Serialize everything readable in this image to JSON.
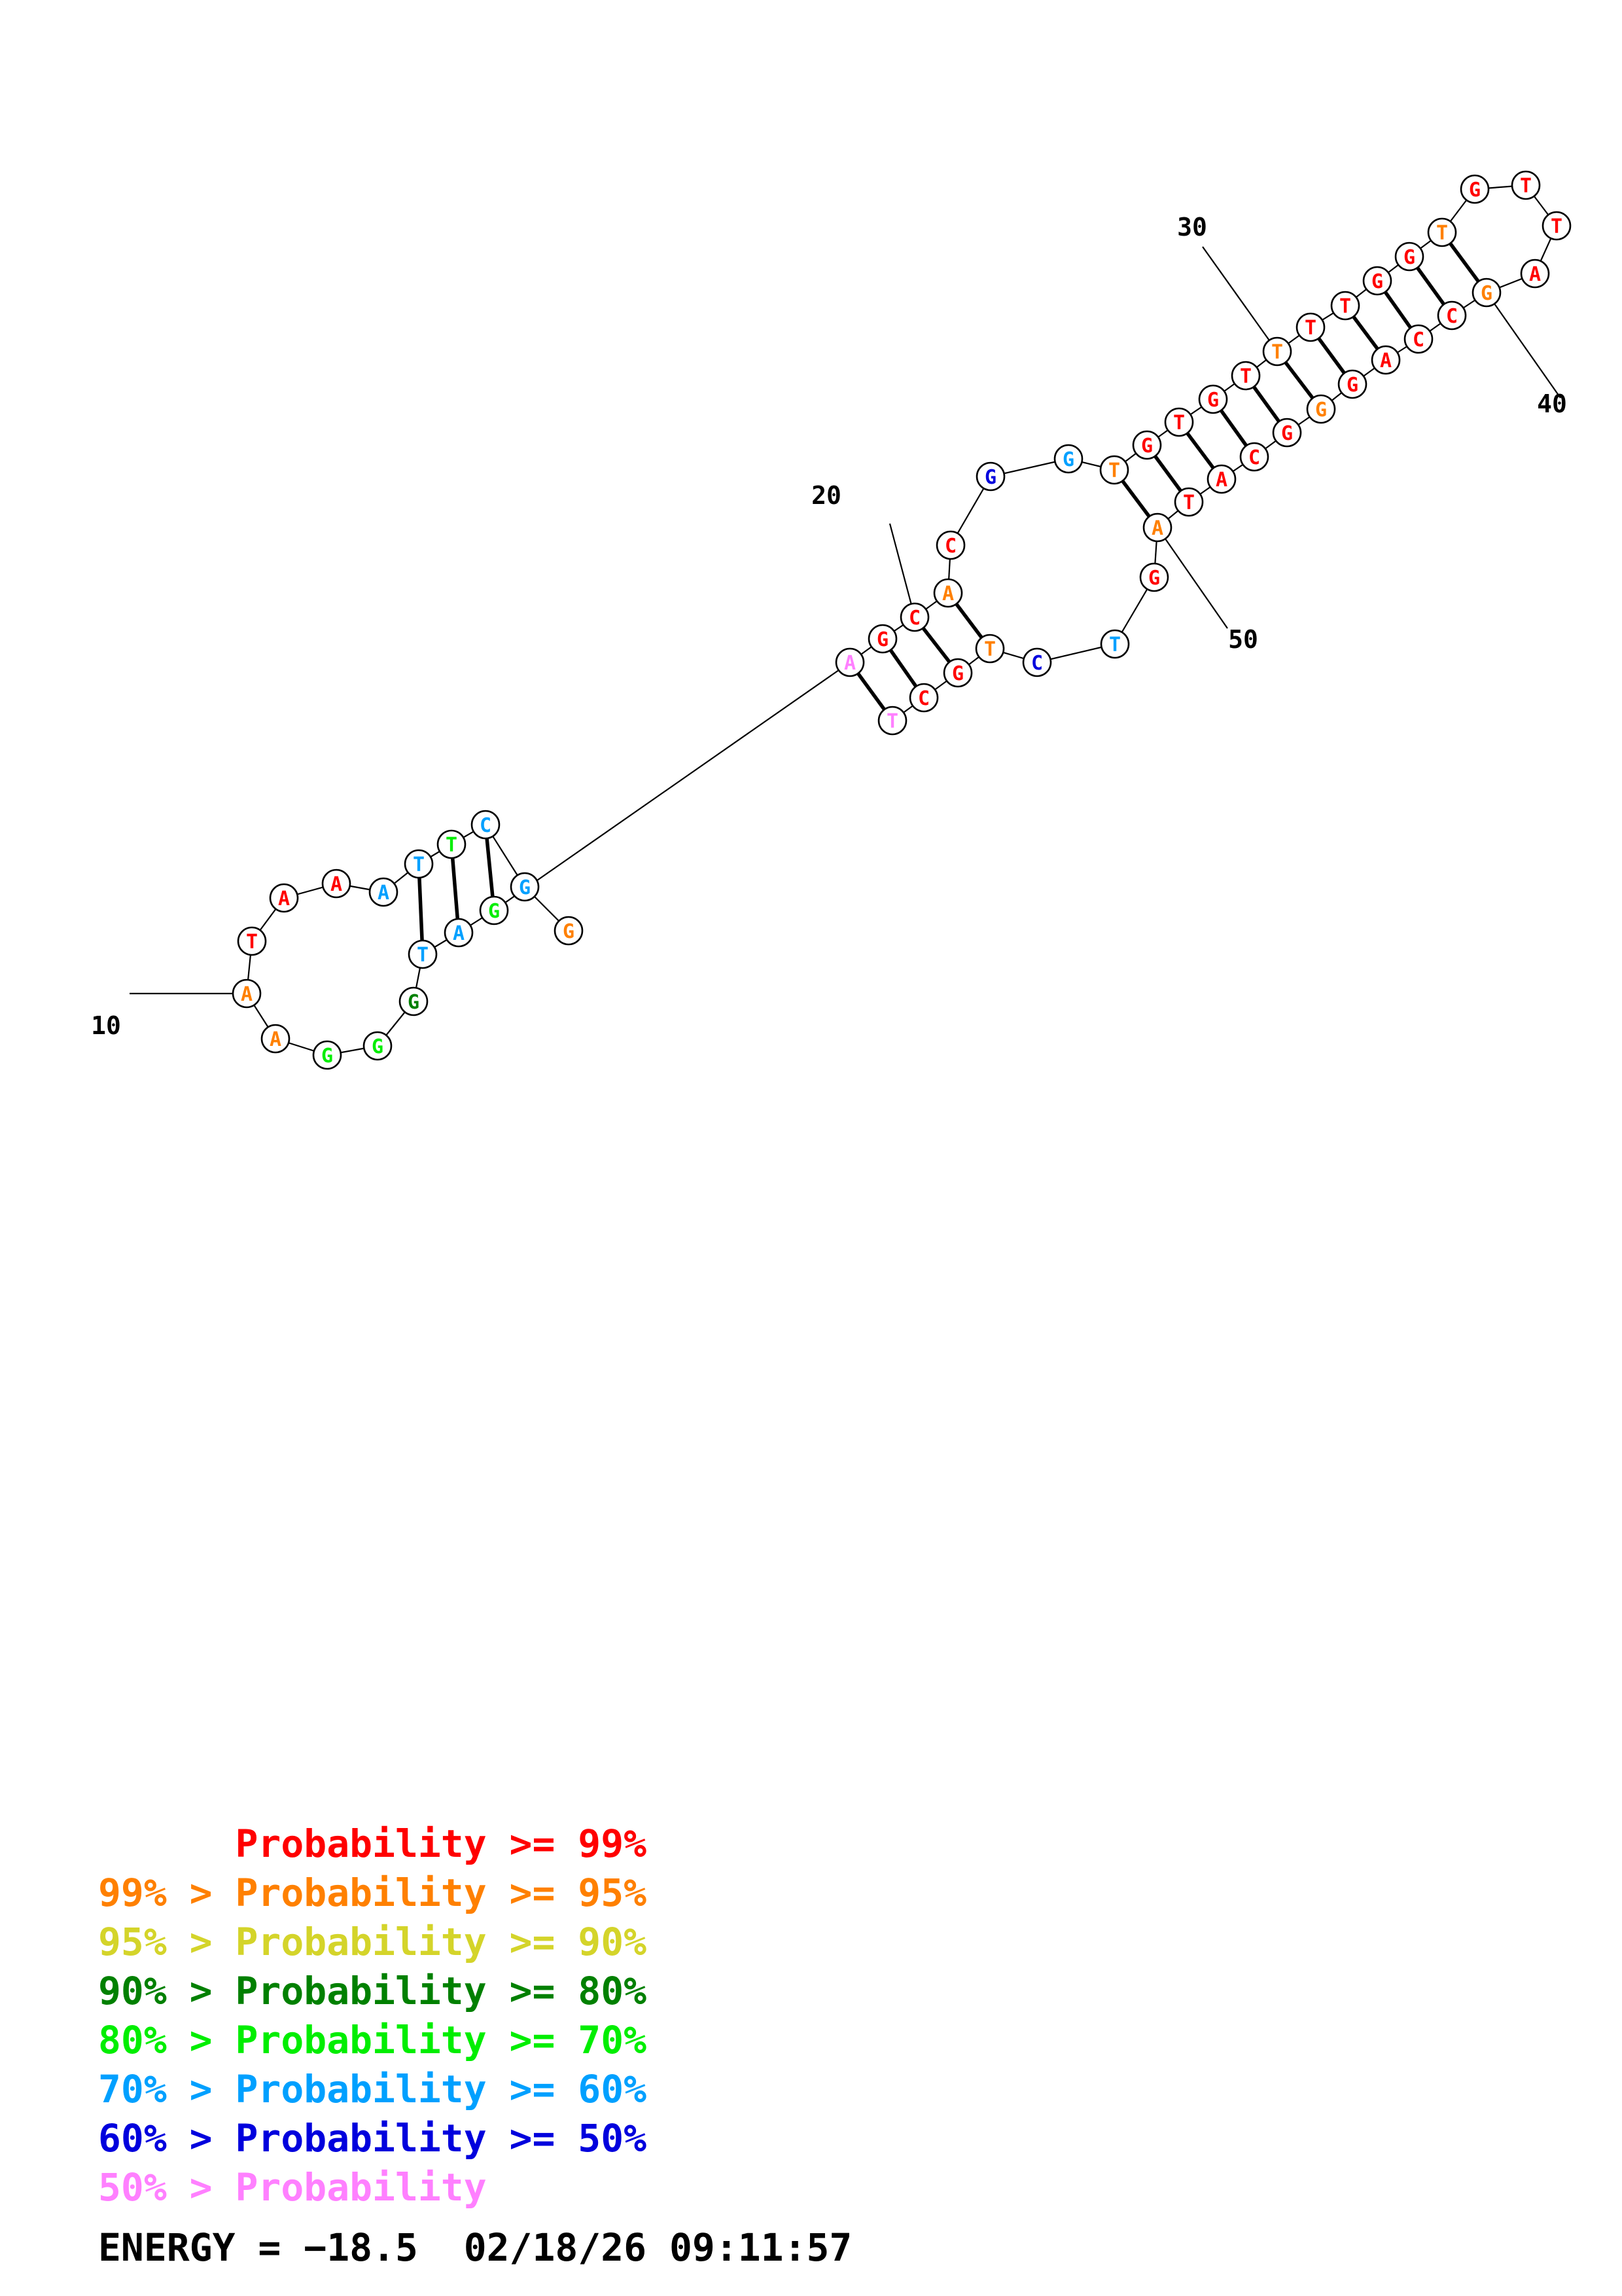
{
  "colors": {
    "p99": "#ff0000",
    "p95": "#ff8000",
    "p90": "#d4d42a",
    "p80": "#008000",
    "p70": "#00ee00",
    "p60": "#00a0ff",
    "p50": "#0000dd",
    "plow": "#ff80ff"
  },
  "structure": {
    "nucleotides": [
      {
        "n": 1,
        "base": "G",
        "level": "p95"
      },
      {
        "n": 2,
        "base": "G",
        "level": "p60"
      },
      {
        "n": 3,
        "base": "C",
        "level": "p60"
      },
      {
        "n": 4,
        "base": "T",
        "level": "p70"
      },
      {
        "n": 5,
        "base": "T",
        "level": "p60"
      },
      {
        "n": 6,
        "base": "A",
        "level": "p60"
      },
      {
        "n": 7,
        "base": "A",
        "level": "p99"
      },
      {
        "n": 8,
        "base": "A",
        "level": "p99"
      },
      {
        "n": 9,
        "base": "T",
        "level": "p99"
      },
      {
        "n": 10,
        "base": "A",
        "level": "p95"
      },
      {
        "n": 11,
        "base": "A",
        "level": "p95"
      },
      {
        "n": 12,
        "base": "G",
        "level": "p70"
      },
      {
        "n": 13,
        "base": "G",
        "level": "p70"
      },
      {
        "n": 14,
        "base": "G",
        "level": "p80"
      },
      {
        "n": 15,
        "base": "T",
        "level": "p60"
      },
      {
        "n": 16,
        "base": "A",
        "level": "p60"
      },
      {
        "n": 17,
        "base": "G",
        "level": "p70"
      },
      {
        "n": 18,
        "base": "A",
        "level": "plow"
      },
      {
        "n": 19,
        "base": "G",
        "level": "p99"
      },
      {
        "n": 20,
        "base": "C",
        "level": "p99"
      },
      {
        "n": 21,
        "base": "A",
        "level": "p95"
      },
      {
        "n": 22,
        "base": "C",
        "level": "p99"
      },
      {
        "n": 23,
        "base": "G",
        "level": "p50"
      },
      {
        "n": 24,
        "base": "G",
        "level": "p60"
      },
      {
        "n": 25,
        "base": "T",
        "level": "p95"
      },
      {
        "n": 26,
        "base": "G",
        "level": "p99"
      },
      {
        "n": 27,
        "base": "T",
        "level": "p99"
      },
      {
        "n": 28,
        "base": "G",
        "level": "p99"
      },
      {
        "n": 29,
        "base": "T",
        "level": "p99"
      },
      {
        "n": 30,
        "base": "T",
        "level": "p95"
      },
      {
        "n": 31,
        "base": "T",
        "level": "p99"
      },
      {
        "n": 32,
        "base": "T",
        "level": "p99"
      },
      {
        "n": 33,
        "base": "G",
        "level": "p99"
      },
      {
        "n": 34,
        "base": "G",
        "level": "p99"
      },
      {
        "n": 35,
        "base": "T",
        "level": "p95"
      },
      {
        "n": 36,
        "base": "G",
        "level": "p99"
      },
      {
        "n": 37,
        "base": "T",
        "level": "p99"
      },
      {
        "n": 38,
        "base": "T",
        "level": "p99"
      },
      {
        "n": 39,
        "base": "A",
        "level": "p99"
      },
      {
        "n": 40,
        "base": "G",
        "level": "p95"
      },
      {
        "n": 41,
        "base": "C",
        "level": "p99"
      },
      {
        "n": 42,
        "base": "C",
        "level": "p99"
      },
      {
        "n": 43,
        "base": "A",
        "level": "p99"
      },
      {
        "n": 44,
        "base": "G",
        "level": "p99"
      },
      {
        "n": 45,
        "base": "G",
        "level": "p95"
      },
      {
        "n": 46,
        "base": "G",
        "level": "p99"
      },
      {
        "n": 47,
        "base": "C",
        "level": "p99"
      },
      {
        "n": 48,
        "base": "A",
        "level": "p99"
      },
      {
        "n": 49,
        "base": "T",
        "level": "p99"
      },
      {
        "n": 50,
        "base": "A",
        "level": "p95"
      },
      {
        "n": 51,
        "base": "G",
        "level": "p99"
      },
      {
        "n": 52,
        "base": "T",
        "level": "p60"
      },
      {
        "n": 53,
        "base": "C",
        "level": "p50"
      },
      {
        "n": 54,
        "base": "T",
        "level": "p95"
      },
      {
        "n": 55,
        "base": "G",
        "level": "p99"
      },
      {
        "n": 56,
        "base": "C",
        "level": "p99"
      },
      {
        "n": 57,
        "base": "T",
        "level": "plow"
      }
    ],
    "pairs": [
      [
        3,
        17
      ],
      [
        4,
        16
      ],
      [
        5,
        15
      ],
      [
        18,
        57
      ],
      [
        19,
        56
      ],
      [
        20,
        55
      ],
      [
        21,
        54
      ],
      [
        25,
        50
      ],
      [
        26,
        49
      ],
      [
        27,
        48
      ],
      [
        28,
        47
      ],
      [
        29,
        46
      ],
      [
        30,
        45
      ],
      [
        31,
        44
      ],
      [
        32,
        43
      ],
      [
        33,
        42
      ],
      [
        34,
        41
      ],
      [
        35,
        40
      ]
    ],
    "ticks": [
      {
        "label": "10",
        "n": 10
      },
      {
        "label": "20",
        "n": 20
      },
      {
        "label": "30",
        "n": 30
      },
      {
        "label": "40",
        "n": 40
      },
      {
        "label": "50",
        "n": 50
      }
    ]
  },
  "legend": [
    {
      "prefix": "",
      "label": "Probability",
      "suffix": ">= 99%",
      "level": "p99"
    },
    {
      "prefix": "99% >",
      "label": "Probability",
      "suffix": ">= 95%",
      "level": "p95"
    },
    {
      "prefix": "95% >",
      "label": "Probability",
      "suffix": ">= 90%",
      "level": "p90"
    },
    {
      "prefix": "90% >",
      "label": "Probability",
      "suffix": ">= 80%",
      "level": "p80"
    },
    {
      "prefix": "80% >",
      "label": "Probability",
      "suffix": ">= 70%",
      "level": "p70"
    },
    {
      "prefix": "70% >",
      "label": "Probability",
      "suffix": ">= 60%",
      "level": "p60"
    },
    {
      "prefix": "60% >",
      "label": "Probability",
      "suffix": ">= 50%",
      "level": "p50"
    },
    {
      "prefix": "50% >",
      "label": "Probability",
      "suffix": "",
      "level": "plow"
    }
  ],
  "footer": {
    "energy": "ENERGY = −18.5",
    "timestamp": "02/18/26 09:11:57"
  }
}
